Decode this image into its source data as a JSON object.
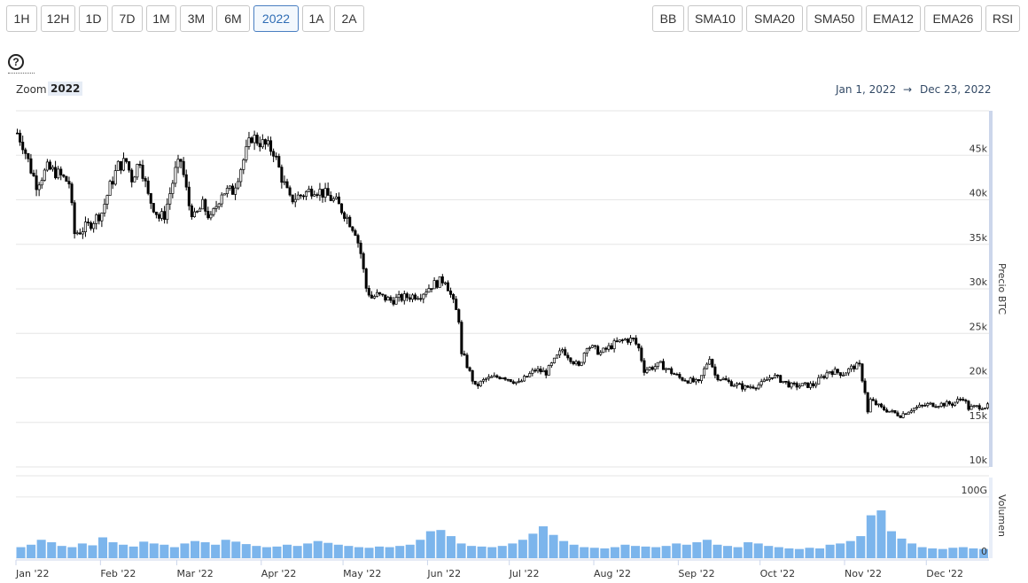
{
  "toolbar": {
    "range_buttons": [
      "1H",
      "12H",
      "1D",
      "7D",
      "1M",
      "3M",
      "6M",
      "2022",
      "1A",
      "2A"
    ],
    "active_range": "2022",
    "indicator_buttons": [
      "BB",
      "SMA10",
      "SMA20",
      "SMA50",
      "EMA12",
      "EMA26",
      "RSI"
    ]
  },
  "help": {
    "icon": "question-circle-icon",
    "glyph": "?"
  },
  "zoom": {
    "label": "Zoom",
    "value": "2022"
  },
  "date_range": {
    "from": "Jan 1, 2022",
    "separator": "→",
    "to": "Dec 23, 2022"
  },
  "colors": {
    "up": "#ffffff",
    "down": "#000000",
    "volume": "#7cb5ec",
    "active_button": "#2f6db5",
    "navigator": "#ccd6eb"
  },
  "chart_data": [
    {
      "type": "candlestick",
      "title": "",
      "ylabel": "Precio BTC",
      "ylim": [
        10000,
        50000
      ],
      "y_ticks": [
        10000,
        15000,
        20000,
        25000,
        30000,
        35000,
        40000,
        45000
      ],
      "y_tick_labels": [
        "10k",
        "15k",
        "20k",
        "25k",
        "30k",
        "35k",
        "40k",
        "45k"
      ],
      "x_range": [
        "2022-01-01",
        "2022-12-23"
      ],
      "x_ticks": [
        "2022-01-01",
        "2022-02-01",
        "2022-03-01",
        "2022-04-01",
        "2022-05-01",
        "2022-06-01",
        "2022-07-01",
        "2022-08-01",
        "2022-09-01",
        "2022-10-01",
        "2022-11-01",
        "2022-12-01"
      ],
      "x_tick_labels": [
        "Jan '22",
        "Feb '22",
        "Mar '22",
        "Apr '22",
        "May '22",
        "Jun '22",
        "Jul '22",
        "Aug '22",
        "Sep '22",
        "Oct '22",
        "Nov '22",
        "Dec '22"
      ],
      "close_series": {
        "name": "",
        "x": [
          "2022-01-01",
          "2022-01-03",
          "2022-01-06",
          "2022-01-08",
          "2022-01-12",
          "2022-01-15",
          "2022-01-18",
          "2022-01-20",
          "2022-01-22",
          "2022-01-24",
          "2022-01-27",
          "2022-02-01",
          "2022-02-04",
          "2022-02-07",
          "2022-02-10",
          "2022-02-12",
          "2022-02-15",
          "2022-02-18",
          "2022-02-22",
          "2022-02-24",
          "2022-02-28",
          "2022-03-02",
          "2022-03-05",
          "2022-03-07",
          "2022-03-10",
          "2022-03-13",
          "2022-03-17",
          "2022-03-21",
          "2022-03-25",
          "2022-03-28",
          "2022-04-01",
          "2022-04-05",
          "2022-04-08",
          "2022-04-11",
          "2022-04-15",
          "2022-04-20",
          "2022-04-25",
          "2022-04-28",
          "2022-05-01",
          "2022-05-05",
          "2022-05-07",
          "2022-05-09",
          "2022-05-11",
          "2022-05-13",
          "2022-05-18",
          "2022-05-24",
          "2022-05-29",
          "2022-06-02",
          "2022-06-07",
          "2022-06-10",
          "2022-06-12",
          "2022-06-13",
          "2022-06-14",
          "2022-06-18",
          "2022-06-22",
          "2022-06-28",
          "2022-07-04",
          "2022-07-10",
          "2022-07-14",
          "2022-07-20",
          "2022-07-26",
          "2022-07-29",
          "2022-08-03",
          "2022-08-08",
          "2022-08-12",
          "2022-08-15",
          "2022-08-17",
          "2022-08-19",
          "2022-08-25",
          "2022-09-01",
          "2022-09-08",
          "2022-09-12",
          "2022-09-14",
          "2022-09-19",
          "2022-09-25",
          "2022-10-01",
          "2022-10-05",
          "2022-10-12",
          "2022-10-20",
          "2022-10-26",
          "2022-10-31",
          "2022-11-04",
          "2022-11-06",
          "2022-11-08",
          "2022-11-09",
          "2022-11-10",
          "2022-11-14",
          "2022-11-21",
          "2022-11-25",
          "2022-12-01",
          "2022-12-10",
          "2022-12-14",
          "2022-12-16",
          "2022-12-20",
          "2022-12-23"
        ],
        "y": [
          47500,
          46300,
          43400,
          41800,
          43500,
          43100,
          42400,
          41900,
          36200,
          36500,
          37100,
          38600,
          41500,
          43800,
          44300,
          42400,
          44500,
          40400,
          38000,
          38300,
          43200,
          44400,
          39400,
          38000,
          39400,
          37800,
          40900,
          41000,
          44500,
          47100,
          46300,
          45500,
          42500,
          40000,
          40500,
          41300,
          40400,
          39700,
          38500,
          36500,
          34000,
          30100,
          29000,
          29300,
          28700,
          29100,
          29400,
          30400,
          31100,
          28400,
          26600,
          22500,
          22200,
          19000,
          19900,
          20200,
          19400,
          20900,
          20600,
          23200,
          21200,
          23700,
          22800,
          23800,
          24300,
          24300,
          23300,
          20900,
          21500,
          20000,
          19400,
          22400,
          20300,
          19500,
          18900,
          19300,
          20300,
          19100,
          19200,
          20800,
          20500,
          21300,
          21300,
          18500,
          16100,
          17500,
          16600,
          15800,
          16500,
          17000,
          17100,
          17800,
          16600,
          16800,
          16800
        ]
      },
      "volume": {
        "ylabel": "Volumen",
        "ylim": [
          0,
          120
        ],
        "y_ticks": [
          0,
          100
        ],
        "y_tick_labels": [
          "0",
          "100G"
        ],
        "unit": "G",
        "values": [
          18,
          22,
          30,
          26,
          20,
          18,
          24,
          21,
          34,
          26,
          22,
          19,
          27,
          24,
          22,
          18,
          24,
          28,
          26,
          22,
          30,
          27,
          23,
          20,
          18,
          19,
          22,
          20,
          24,
          28,
          25,
          22,
          20,
          18,
          17,
          19,
          18,
          20,
          22,
          30,
          44,
          46,
          36,
          24,
          20,
          19,
          18,
          20,
          24,
          30,
          40,
          52,
          38,
          28,
          22,
          18,
          17,
          16,
          18,
          22,
          20,
          19,
          18,
          20,
          24,
          22,
          26,
          30,
          22,
          20,
          18,
          26,
          24,
          20,
          18,
          16,
          15,
          17,
          16,
          22,
          24,
          28,
          36,
          70,
          78,
          44,
          32,
          24,
          18,
          16,
          15,
          17,
          18,
          16,
          15
        ]
      }
    }
  ]
}
